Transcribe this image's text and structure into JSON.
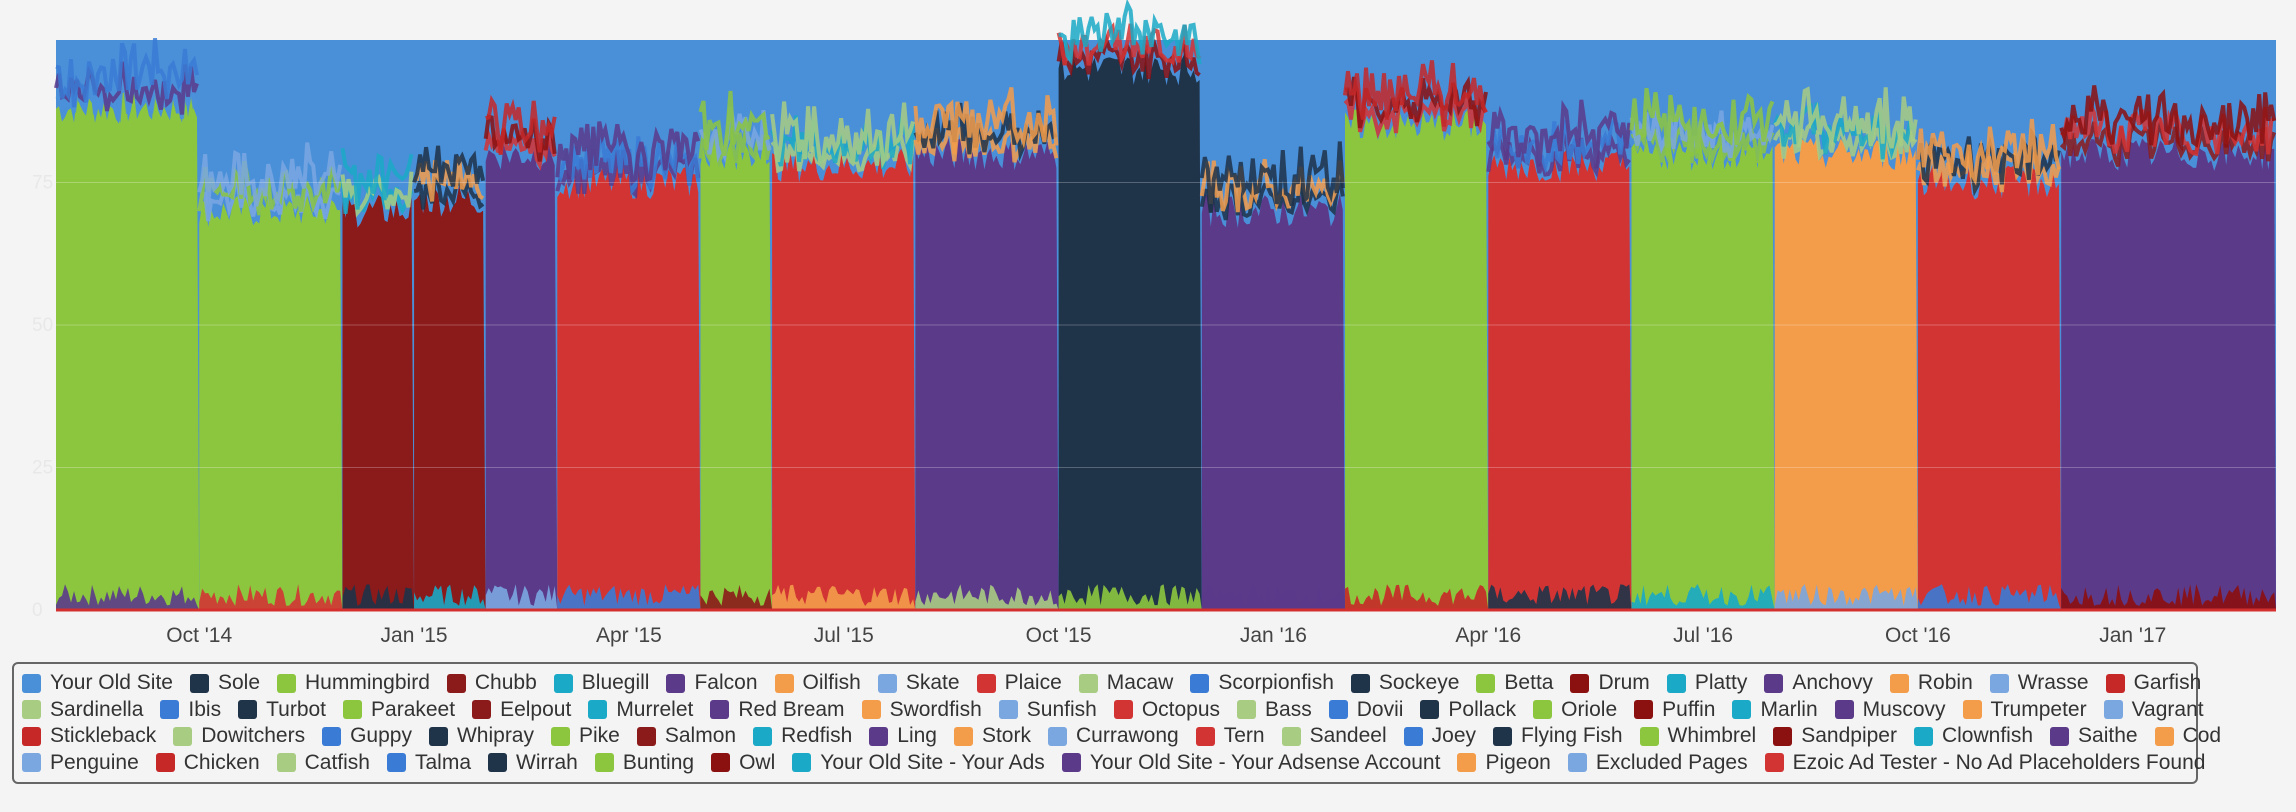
{
  "chart_data": {
    "type": "area",
    "stacking": "percent",
    "xlabel": "",
    "ylabel": "",
    "ylim": [
      0,
      100
    ],
    "y_ticks": [
      "0",
      "25",
      "50",
      "75"
    ],
    "x_ticks": [
      "Oct '14",
      "Jan '15",
      "Apr '15",
      "Jul '15",
      "Oct '15",
      "Jan '16",
      "Apr '16",
      "Jul '16",
      "Oct '16",
      "Jan '17"
    ],
    "grid": true,
    "legend_position": "bottom",
    "x_range": [
      "2014-08",
      "2017-03"
    ],
    "dominant_series_by_period": [
      {
        "from": "2014-08",
        "to": "2014-10",
        "series": "Hummingbird",
        "share": 88
      },
      {
        "from": "2014-10",
        "to": "2014-12",
        "series": "Hummingbird",
        "share": 70
      },
      {
        "from": "2014-12",
        "to": "2015-01",
        "series": "Chubb",
        "share": 70
      },
      {
        "from": "2015-01",
        "to": "2015-02",
        "series": "Chubb",
        "share": 72
      },
      {
        "from": "2015-02",
        "to": "2015-03",
        "series": "Falcon",
        "share": 80
      },
      {
        "from": "2015-03",
        "to": "2015-05",
        "series": "Plaice",
        "share": 75
      },
      {
        "from": "2015-05",
        "to": "2015-06",
        "series": "Hummingbird",
        "share": 80
      },
      {
        "from": "2015-06",
        "to": "2015-08",
        "series": "Plaice",
        "share": 78
      },
      {
        "from": "2015-08",
        "to": "2015-10",
        "series": "Falcon",
        "share": 80
      },
      {
        "from": "2015-10",
        "to": "2015-12",
        "series": "Sockeye",
        "share": 95
      },
      {
        "from": "2015-12",
        "to": "2016-02",
        "series": "Falcon",
        "share": 70
      },
      {
        "from": "2016-02",
        "to": "2016-04",
        "series": "Hummingbird",
        "share": 85
      },
      {
        "from": "2016-04",
        "to": "2016-06",
        "series": "Plaice",
        "share": 78
      },
      {
        "from": "2016-06",
        "to": "2016-08",
        "series": "Hummingbird",
        "share": 80
      },
      {
        "from": "2016-08",
        "to": "2016-10",
        "series": "Oilfish",
        "share": 80
      },
      {
        "from": "2016-10",
        "to": "2016-12",
        "series": "Plaice",
        "share": 75
      },
      {
        "from": "2016-12",
        "to": "2017-03",
        "series": "Falcon",
        "share": 80
      }
    ],
    "series": [
      {
        "name": "Your Old Site",
        "color": "#4a90d9"
      },
      {
        "name": "Sole",
        "color": "#1f3349"
      },
      {
        "name": "Hummingbird",
        "color": "#8cc63f"
      },
      {
        "name": "Chubb",
        "color": "#8b1a1a"
      },
      {
        "name": "Bluegill",
        "color": "#1aa9c6"
      },
      {
        "name": "Falcon",
        "color": "#5b3a8a"
      },
      {
        "name": "Oilfish",
        "color": "#f39c4a"
      },
      {
        "name": "Skate",
        "color": "#7aa7e0"
      },
      {
        "name": "Plaice",
        "color": "#d23434"
      },
      {
        "name": "Macaw",
        "color": "#a8cc82"
      },
      {
        "name": "Scorpionfish",
        "color": "#3a7bd5"
      },
      {
        "name": "Sockeye",
        "color": "#1f3349"
      },
      {
        "name": "Betta",
        "color": "#8cc63f"
      },
      {
        "name": "Drum",
        "color": "#8b1010"
      },
      {
        "name": "Platty",
        "color": "#1aa9c6"
      },
      {
        "name": "Anchovy",
        "color": "#5b3a8a"
      },
      {
        "name": "Robin",
        "color": "#f39c4a"
      },
      {
        "name": "Wrasse",
        "color": "#7aa7e0"
      },
      {
        "name": "Garfish",
        "color": "#c62828"
      },
      {
        "name": "Sardinella",
        "color": "#a8cc82"
      },
      {
        "name": "Ibis",
        "color": "#3a7bd5"
      },
      {
        "name": "Turbot",
        "color": "#1f3349"
      },
      {
        "name": "Parakeet",
        "color": "#8cc63f"
      },
      {
        "name": "Eelpout",
        "color": "#8b1a1a"
      },
      {
        "name": "Murrelet",
        "color": "#1aa9c6"
      },
      {
        "name": "Red Bream",
        "color": "#5b3a8a"
      },
      {
        "name": "Swordfish",
        "color": "#f39c4a"
      },
      {
        "name": "Sunfish",
        "color": "#7aa7e0"
      },
      {
        "name": "Octopus",
        "color": "#d23434"
      },
      {
        "name": "Bass",
        "color": "#a8cc82"
      },
      {
        "name": "Dovii",
        "color": "#3a7bd5"
      },
      {
        "name": "Pollack",
        "color": "#1f3349"
      },
      {
        "name": "Oriole",
        "color": "#8cc63f"
      },
      {
        "name": "Puffin",
        "color": "#8b1010"
      },
      {
        "name": "Marlin",
        "color": "#1aa9c6"
      },
      {
        "name": "Muscovy",
        "color": "#5b3a8a"
      },
      {
        "name": "Trumpeter",
        "color": "#f39c4a"
      },
      {
        "name": "Vagrant",
        "color": "#7aa7e0"
      },
      {
        "name": "Stickleback",
        "color": "#c62828"
      },
      {
        "name": "Dowitchers",
        "color": "#a8cc82"
      },
      {
        "name": "Guppy",
        "color": "#3a7bd5"
      },
      {
        "name": "Whipray",
        "color": "#1f3349"
      },
      {
        "name": "Pike",
        "color": "#8cc63f"
      },
      {
        "name": "Salmon",
        "color": "#8b1a1a"
      },
      {
        "name": "Redfish",
        "color": "#1aa9c6"
      },
      {
        "name": "Ling",
        "color": "#5b3a8a"
      },
      {
        "name": "Stork",
        "color": "#f39c4a"
      },
      {
        "name": "Currawong",
        "color": "#7aa7e0"
      },
      {
        "name": "Tern",
        "color": "#d23434"
      },
      {
        "name": "Sandeel",
        "color": "#a8cc82"
      },
      {
        "name": "Joey",
        "color": "#3a7bd5"
      },
      {
        "name": "Flying Fish",
        "color": "#1f3349"
      },
      {
        "name": "Whimbrel",
        "color": "#8cc63f"
      },
      {
        "name": "Sandpiper",
        "color": "#8b1010"
      },
      {
        "name": "Clownfish",
        "color": "#1aa9c6"
      },
      {
        "name": "Saithe",
        "color": "#5b3a8a"
      },
      {
        "name": "Cod",
        "color": "#f39c4a"
      },
      {
        "name": "Penguine",
        "color": "#7aa7e0"
      },
      {
        "name": "Chicken",
        "color": "#c62828"
      },
      {
        "name": "Catfish",
        "color": "#a8cc82"
      },
      {
        "name": "Talma",
        "color": "#3a7bd5"
      },
      {
        "name": "Wirrah",
        "color": "#1f3349"
      },
      {
        "name": "Bunting",
        "color": "#8cc63f"
      },
      {
        "name": "Owl",
        "color": "#8b1010"
      },
      {
        "name": "Your Old Site - Your Ads",
        "color": "#1aa9c6"
      },
      {
        "name": "Your Old Site - Your Adsense Account",
        "color": "#5b3a8a"
      },
      {
        "name": "Pigeon",
        "color": "#f39c4a"
      },
      {
        "name": "Excluded Pages",
        "color": "#7aa7e0"
      },
      {
        "name": "Ezoic Ad Tester - No Ad Placeholders Found",
        "color": "#d23434"
      }
    ]
  }
}
